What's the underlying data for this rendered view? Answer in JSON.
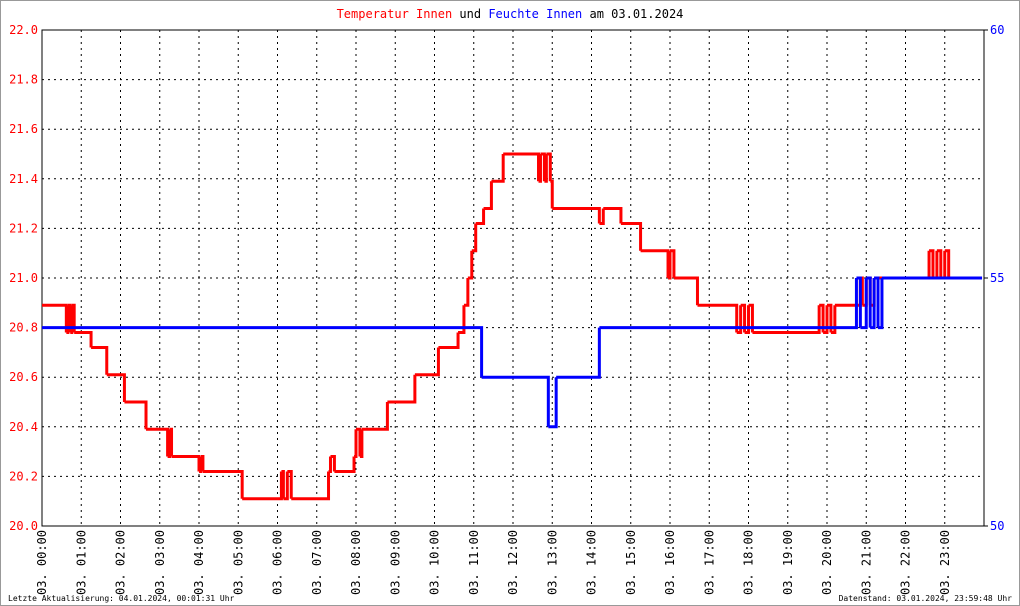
{
  "chart_data": {
    "type": "line",
    "title_connector": "und",
    "title_date": "am 03.01.2024",
    "footer_left": "Letzte Aktualisierung: 04.01.2024, 00:01:31 Uhr",
    "footer_right": "Datenstand: 03.01.2024, 23:59:48 Uhr",
    "drawstyle": "steps-post",
    "grid": true,
    "xlim": [
      0,
      24
    ],
    "xticks": [
      {
        "value": 0,
        "label": "03. 00:00"
      },
      {
        "value": 1,
        "label": "03. 01:00"
      },
      {
        "value": 2,
        "label": "03. 02:00"
      },
      {
        "value": 3,
        "label": "03. 03:00"
      },
      {
        "value": 4,
        "label": "03. 04:00"
      },
      {
        "value": 5,
        "label": "03. 05:00"
      },
      {
        "value": 6,
        "label": "03. 06:00"
      },
      {
        "value": 7,
        "label": "03. 07:00"
      },
      {
        "value": 8,
        "label": "03. 08:00"
      },
      {
        "value": 9,
        "label": "03. 09:00"
      },
      {
        "value": 10,
        "label": "03. 10:00"
      },
      {
        "value": 11,
        "label": "03. 11:00"
      },
      {
        "value": 12,
        "label": "03. 12:00"
      },
      {
        "value": 13,
        "label": "03. 13:00"
      },
      {
        "value": 14,
        "label": "03. 14:00"
      },
      {
        "value": 15,
        "label": "03. 15:00"
      },
      {
        "value": 16,
        "label": "03. 16:00"
      },
      {
        "value": 17,
        "label": "03. 17:00"
      },
      {
        "value": 18,
        "label": "03. 18:00"
      },
      {
        "value": 19,
        "label": "03. 19:00"
      },
      {
        "value": 20,
        "label": "03. 20:00"
      },
      {
        "value": 21,
        "label": "03. 21:00"
      },
      {
        "value": 22,
        "label": "03. 22:00"
      },
      {
        "value": 23,
        "label": "03. 23:00"
      }
    ],
    "ylim": [
      20.0,
      22.0
    ],
    "yticks": [
      {
        "value": 20,
        "label": "20.0"
      },
      20.2,
      20.4,
      20.6,
      20.8,
      {
        "value": 21,
        "label": "21.0"
      },
      21.2,
      21.4,
      21.6,
      21.8,
      {
        "value": 22,
        "label": "22.0"
      }
    ],
    "y2lim": [
      50,
      60
    ],
    "y2ticks": [
      50,
      55,
      60
    ],
    "series": [
      {
        "name": "Temperatur Innen",
        "color": "#ff0000",
        "axis": "y",
        "x": [
          0,
          0.62,
          0.66,
          0.72,
          0.76,
          0.82,
          1.25,
          1.65,
          2.1,
          2.65,
          3.2,
          3.25,
          3.3,
          4.0,
          4.05,
          4.1,
          5.1,
          6.1,
          6.15,
          6.25,
          6.35,
          7.3,
          7.35,
          7.45,
          7.95,
          8.0,
          8.1,
          8.15,
          8.8,
          9.5,
          10.1,
          10.6,
          10.75,
          10.85,
          10.95,
          11.05,
          11.25,
          11.45,
          11.75,
          12.65,
          12.7,
          12.8,
          12.85,
          12.95,
          13.0,
          14.2,
          14.3,
          14.75,
          15.25,
          15.95,
          16.0,
          16.1,
          16.7,
          17.7,
          17.8,
          17.9,
          18.0,
          18.1,
          19.8,
          19.9,
          20.0,
          20.1,
          20.2,
          20.85,
          20.9,
          21.0,
          21.1,
          21.2,
          22.6,
          22.7,
          22.8,
          22.9,
          23.0,
          23.1,
          23.95
        ],
        "values": [
          20.89,
          20.78,
          20.89,
          20.78,
          20.89,
          20.78,
          20.72,
          20.61,
          20.5,
          20.39,
          20.28,
          20.39,
          20.28,
          20.22,
          20.28,
          20.22,
          20.11,
          20.22,
          20.11,
          20.22,
          20.11,
          20.22,
          20.28,
          20.22,
          20.28,
          20.39,
          20.28,
          20.39,
          20.5,
          20.61,
          20.72,
          20.78,
          20.89,
          21.0,
          21.11,
          21.22,
          21.28,
          21.39,
          21.5,
          21.39,
          21.5,
          21.39,
          21.5,
          21.39,
          21.28,
          21.22,
          21.28,
          21.22,
          21.11,
          21.0,
          21.11,
          21.0,
          20.89,
          20.78,
          20.89,
          20.78,
          20.89,
          20.78,
          20.89,
          20.78,
          20.89,
          20.78,
          20.89,
          21.0,
          20.89,
          21.0,
          20.89,
          21.0,
          21.11,
          21.0,
          21.11,
          21.0,
          21.11,
          21.0,
          21.0
        ]
      },
      {
        "name": "Feuchte Innen",
        "color": "#0000ff",
        "axis": "y2",
        "x": [
          0,
          11.2,
          12.9,
          13.1,
          14.2,
          20.75,
          20.85,
          21.0,
          21.1,
          21.2,
          21.3,
          21.4,
          23.95
        ],
        "values": [
          54,
          53,
          52,
          53,
          54,
          55,
          54,
          55,
          54,
          55,
          54,
          55,
          55
        ]
      }
    ]
  }
}
